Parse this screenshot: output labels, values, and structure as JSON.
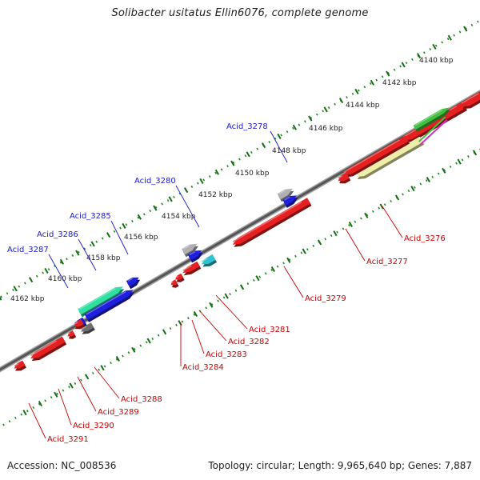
{
  "header": {
    "title": "Solibacter usitatus Ellin6076, complete genome"
  },
  "footer": {
    "accession": "Accession: NC_008536",
    "genome_info": "Topology: circular; Length: 9,965,640 bp; Genes: 7,887"
  },
  "scale": {
    "unit": "kbp",
    "tick_labels": [
      "4140 kbp",
      "4142 kbp",
      "4144 kbp",
      "4146 kbp",
      "4148 kbp",
      "4150 kbp",
      "4152 kbp",
      "4154 kbp",
      "4156 kbp",
      "4158 kbp",
      "4160 kbp",
      "4162 kbp"
    ]
  },
  "genes": {
    "forward": [
      {
        "id": "Acid_3278",
        "color": "#b0b0b4"
      },
      {
        "id": "Acid_3280",
        "color": "#b0b0b4"
      },
      {
        "id": "Acid_3285",
        "color": "#1f1fe0"
      },
      {
        "id": "Acid_3286",
        "color": "#30e0a0"
      },
      {
        "id": "Acid_3287",
        "color": "#1f1fe0"
      }
    ],
    "reverse": [
      {
        "id": "Acid_3276",
        "color": "#e62020"
      },
      {
        "id": "Acid_3277",
        "color": "#eeeeaa"
      },
      {
        "id": "Acid_3279",
        "color": "#e62020"
      },
      {
        "id": "Acid_3281",
        "color": "#30c0d0"
      },
      {
        "id": "Acid_3282",
        "color": "#e62020"
      },
      {
        "id": "Acid_3283",
        "color": "#e62020"
      },
      {
        "id": "Acid_3284",
        "color": "#e62020"
      },
      {
        "id": "Acid_3288",
        "color": "#707070"
      },
      {
        "id": "Acid_3289",
        "color": "#e62020"
      },
      {
        "id": "Acid_3290",
        "color": "#e62020"
      },
      {
        "id": "Acid_3291",
        "color": "#e62020"
      }
    ]
  },
  "colors": {
    "backbone": "#707070",
    "tick": "#1d8a1d",
    "forward_label": "#1a1acc",
    "reverse_label": "#cc0000",
    "strand_purple": "#cc30cc",
    "strand_green": "#40c040"
  }
}
